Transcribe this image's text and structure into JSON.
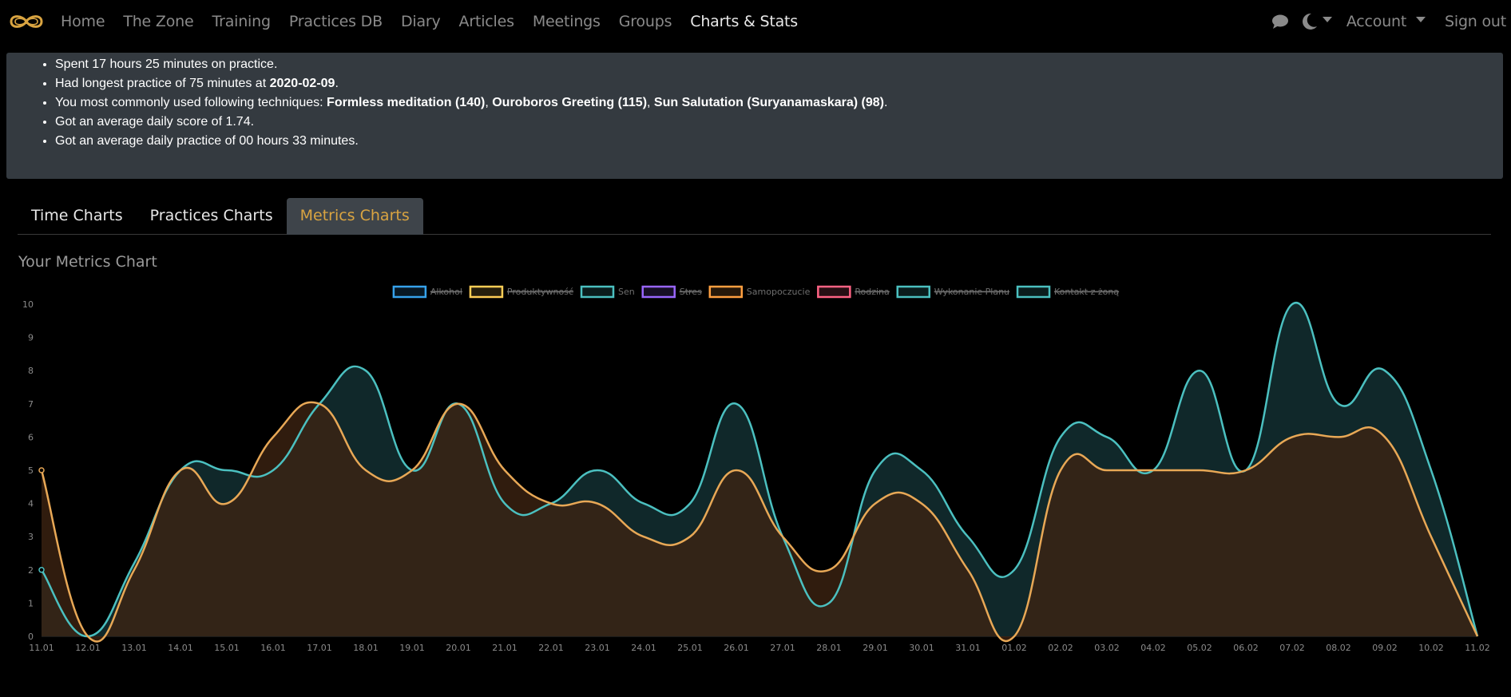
{
  "nav": {
    "items": [
      {
        "label": "Home",
        "active": false
      },
      {
        "label": "The Zone",
        "active": false
      },
      {
        "label": "Training",
        "active": false
      },
      {
        "label": "Practices DB",
        "active": false
      },
      {
        "label": "Diary",
        "active": false
      },
      {
        "label": "Articles",
        "active": false
      },
      {
        "label": "Meetings",
        "active": false
      },
      {
        "label": "Groups",
        "active": false
      },
      {
        "label": "Charts & Stats",
        "active": true
      }
    ],
    "account_label": "Account",
    "signout_label": "Sign out",
    "logo_color": "#d9a441"
  },
  "summary": {
    "line1": "Spent 17 hours 25 minutes on practice.",
    "line2_prefix": "Had longest practice of 75 minutes at ",
    "line2_date": "2020-02-09",
    "line2_suffix": ".",
    "line3_prefix": "You most commonly used following techniques: ",
    "tech1": "Formless meditation (140)",
    "tech2": "Ouroboros Greeting (115)",
    "tech3": "Sun Salutation (Suryanamaskara) (98)",
    "sep": ", ",
    "line3_suffix": ".",
    "line4": "Got an average daily score of 1.74.",
    "line5": "Got an average daily practice of 00 hours 33 minutes."
  },
  "tabs": [
    {
      "label": "Time Charts",
      "active": false
    },
    {
      "label": "Practices Charts",
      "active": false
    },
    {
      "label": "Metrics Charts",
      "active": true
    }
  ],
  "chart_title": "Your Metrics Chart",
  "chart_data": {
    "type": "line",
    "categories": [
      "11.01",
      "12.01",
      "13.01",
      "14.01",
      "15.01",
      "16.01",
      "17.01",
      "18.01",
      "19.01",
      "20.01",
      "21.01",
      "22.01",
      "23.01",
      "24.01",
      "25.01",
      "26.01",
      "27.01",
      "28.01",
      "29.01",
      "30.01",
      "31.01",
      "01.02",
      "02.02",
      "03.02",
      "04.02",
      "05.02",
      "06.02",
      "07.02",
      "08.02",
      "09.02",
      "10.02",
      "11.02"
    ],
    "ylim": [
      0,
      10
    ],
    "yticks": [
      "0",
      "1",
      "2",
      "3",
      "4",
      "5",
      "6",
      "7",
      "8",
      "9",
      "10"
    ],
    "legend": [
      {
        "name": "Alkohol",
        "color": "#36a2eb",
        "hidden": true
      },
      {
        "name": "Produktywność",
        "color": "#ffce56",
        "hidden": true
      },
      {
        "name": "Sen",
        "color": "#4bc0c0",
        "hidden": false
      },
      {
        "name": "Stres",
        "color": "#9966ff",
        "hidden": true
      },
      {
        "name": "Samopoczucie",
        "color": "#ff9f40",
        "hidden": false
      },
      {
        "name": "Rodzina",
        "color": "#ff6384",
        "hidden": true
      },
      {
        "name": "Wykonanie Planu",
        "color": "#4bc0c0",
        "hidden": true
      },
      {
        "name": "Kontakt z żoną",
        "color": "#4bc0c0",
        "hidden": true
      }
    ],
    "series": [
      {
        "name": "Sen",
        "color": "#4bc0c0",
        "fill": "#10282a",
        "values": [
          2,
          0,
          2.2,
          5,
          5,
          5,
          7,
          8,
          5,
          7,
          4,
          4,
          5,
          4,
          4,
          7,
          3,
          1,
          5,
          5,
          3,
          2,
          6,
          6,
          5,
          8,
          5,
          10,
          7,
          8,
          5,
          0
        ]
      },
      {
        "name": "Samopoczucie",
        "color": "#e8a856",
        "fill": "#3d2412",
        "values": [
          5,
          0,
          2,
          5,
          4,
          6,
          7,
          5,
          5,
          7,
          5,
          4,
          4,
          3,
          3,
          5,
          3,
          2,
          4,
          4,
          2,
          0,
          5,
          5,
          5,
          5,
          5,
          6,
          6,
          6,
          3,
          0
        ]
      }
    ]
  }
}
